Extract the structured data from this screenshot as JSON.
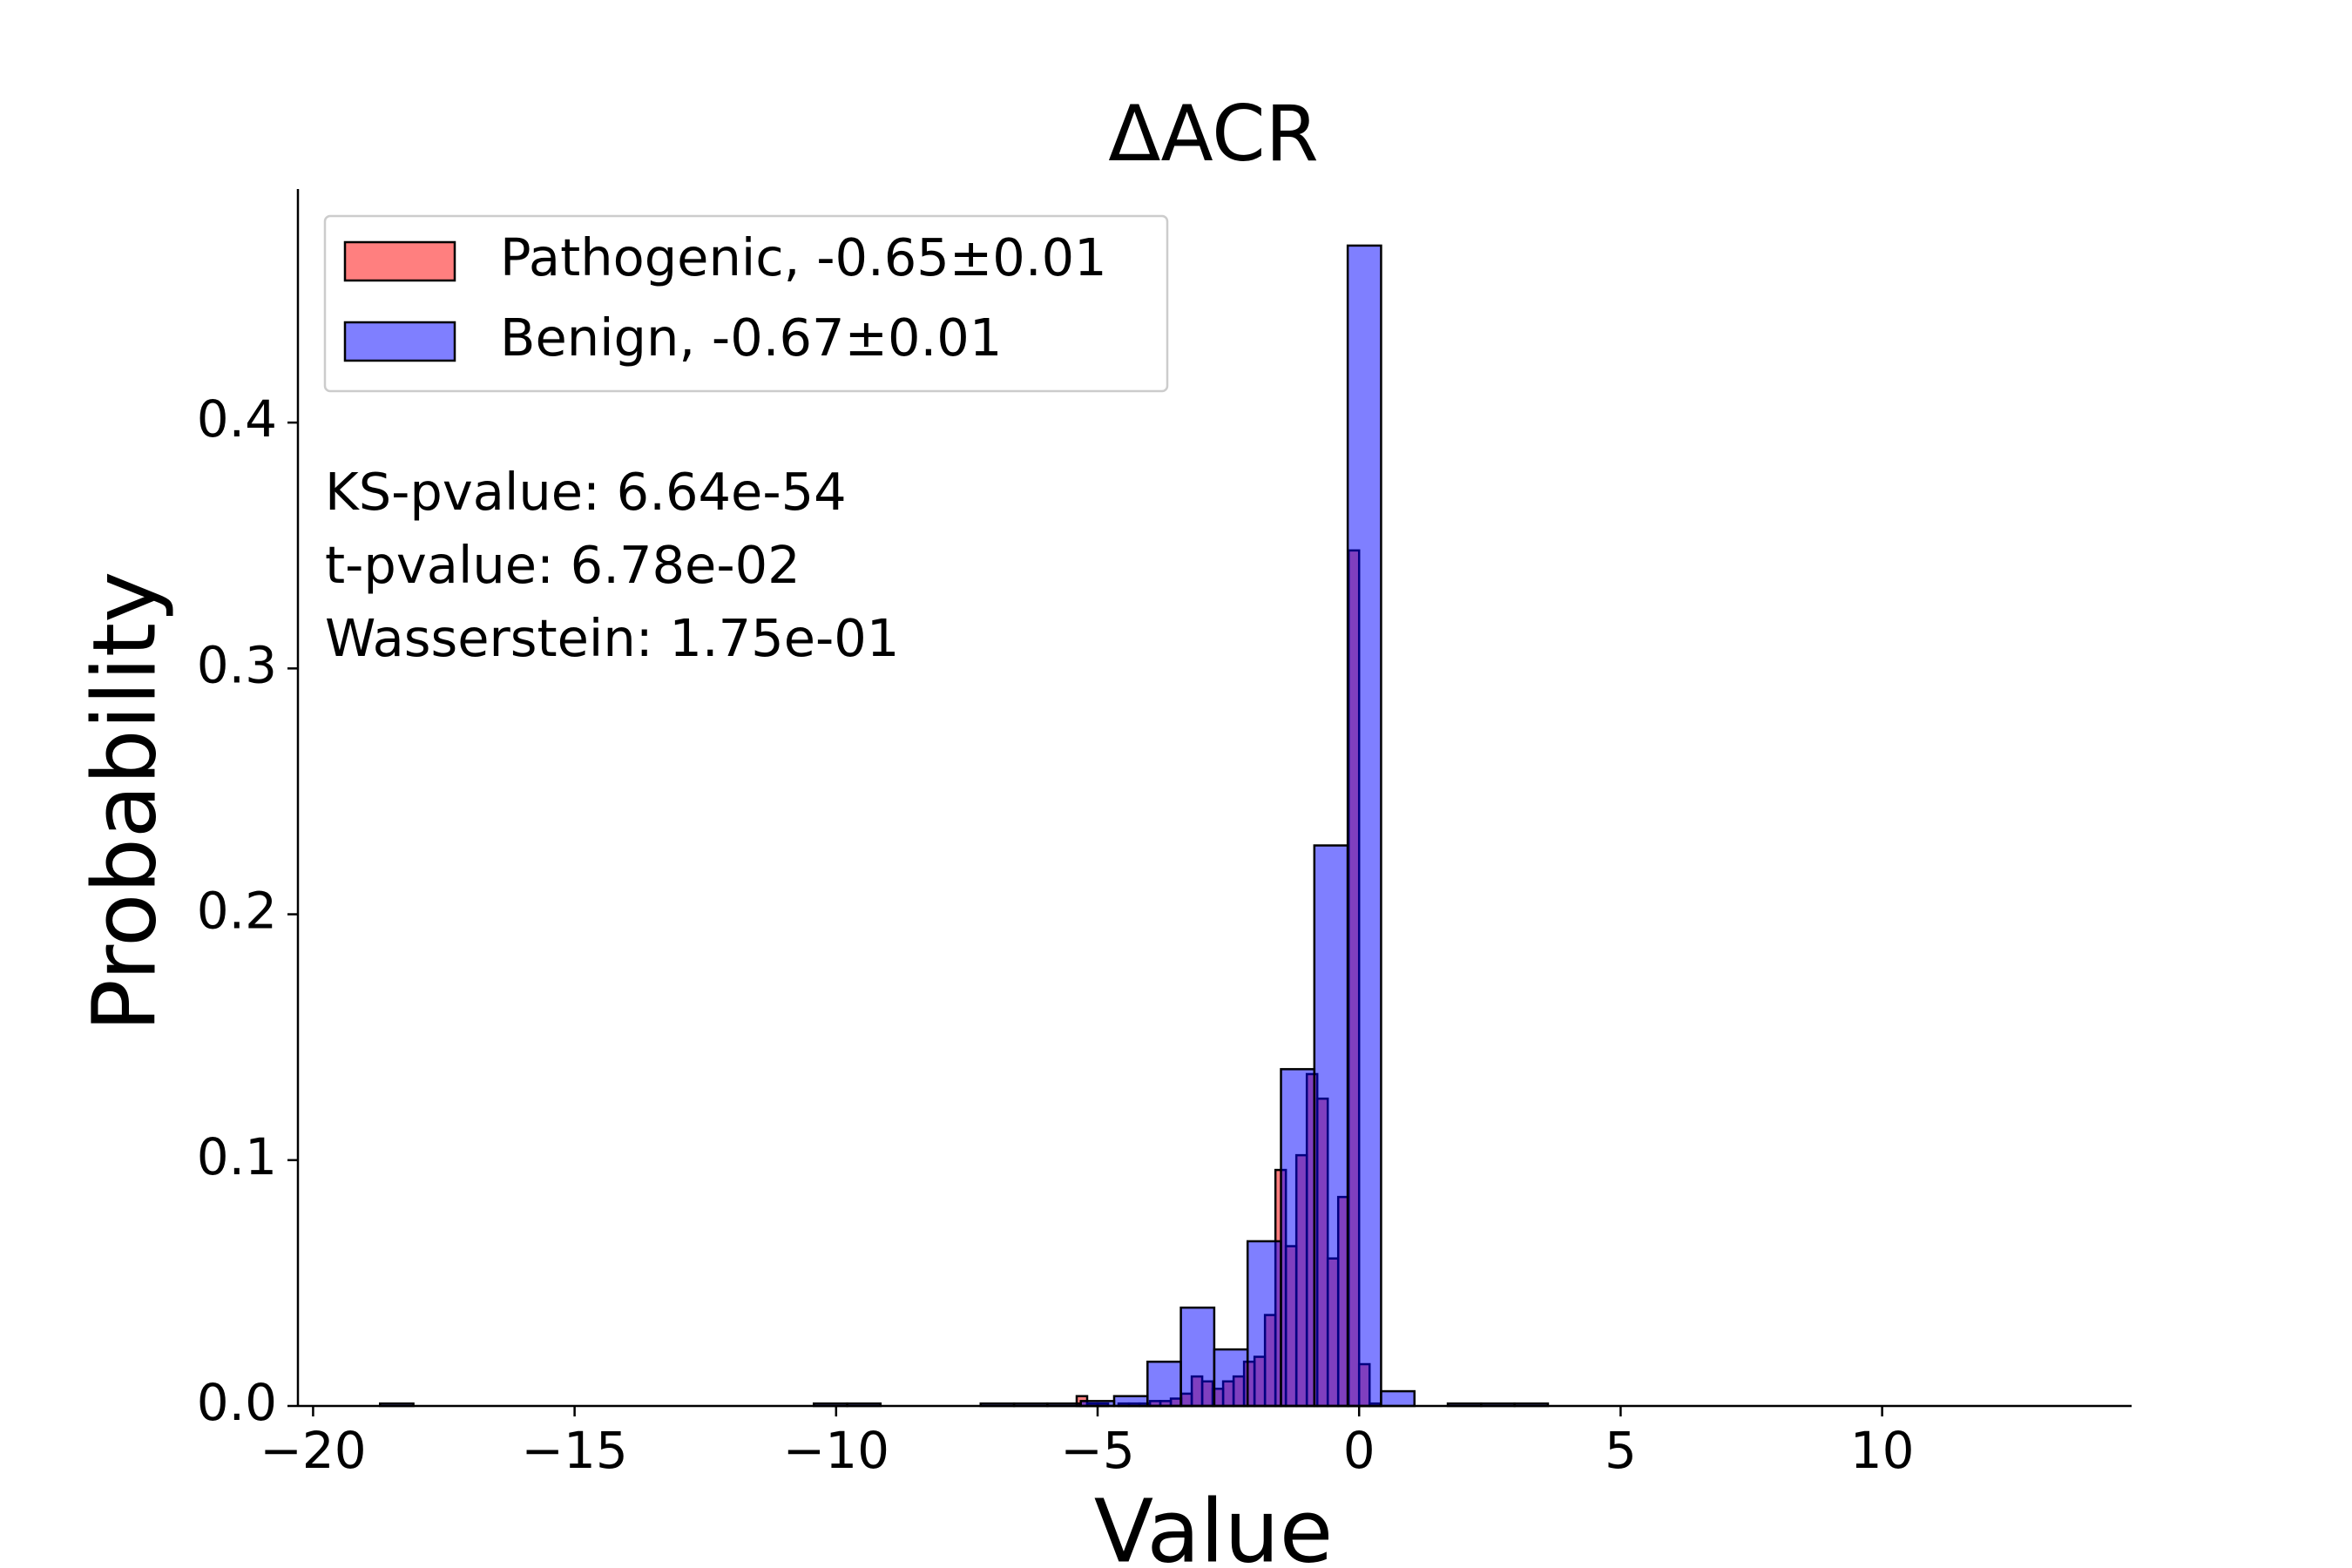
{
  "chart_data": {
    "type": "histogram",
    "title": "ΔACR",
    "x_label": "Value",
    "y_label": "Probability",
    "series": [
      {
        "name": "Pathogenic, -0.65±0.01",
        "color": "#ff0000",
        "bins": [
          -5.4,
          -5.2,
          -5.0,
          -4.8,
          -4.6,
          -4.4,
          -4.2,
          -4.0,
          -3.8,
          -3.6,
          -3.4,
          -3.2,
          -3.0,
          -2.8,
          -2.6,
          -2.4,
          -2.2,
          -2.0,
          -1.8,
          -1.6,
          -1.4,
          -1.2,
          -1.0,
          -0.8,
          -0.6,
          -0.4,
          -0.2,
          0.0,
          0.2,
          0.4
        ],
        "values": [
          0.004,
          0.001,
          0.001,
          0,
          0.001,
          0.001,
          0.001,
          0.002,
          0.002,
          0.003,
          0.005,
          0.012,
          0.01,
          0.007,
          0.01,
          0.012,
          0.018,
          0.02,
          0.037,
          0.096,
          0.065,
          0.102,
          0.135,
          0.125,
          0.06,
          0.085,
          0.348,
          0.017,
          0.001
        ]
      },
      {
        "name": "Benign, -0.67±0.01",
        "color": "#0000ff",
        "bins": [
          -18.72,
          -18.082,
          -17.444,
          -16.806,
          -16.168,
          -15.53,
          -14.892,
          -14.254,
          -13.616,
          -12.978,
          -12.34,
          -11.702,
          -11.064,
          -10.426,
          -9.788,
          -9.15,
          -8.512,
          -7.874,
          -7.236,
          -6.598,
          -5.96,
          -5.322,
          -4.684,
          -4.046,
          -3.408,
          -2.77,
          -2.132,
          -1.494,
          -0.856,
          -0.218,
          0.42,
          1.058,
          1.696,
          2.334,
          2.972,
          3.61,
          4.248,
          4.886,
          5.524,
          6.162,
          6.8,
          7.438,
          8.076,
          8.714,
          9.352,
          9.99,
          10.628,
          11.266,
          11.904,
          12.542,
          13.18
        ],
        "values": [
          0.001,
          0,
          0,
          0,
          0,
          0,
          0,
          0,
          0,
          0,
          0,
          0,
          0,
          0.001,
          0.001,
          0,
          0,
          0,
          0.001,
          0.001,
          0.001,
          0.002,
          0.004,
          0.018,
          0.04,
          0.023,
          0.067,
          0.137,
          0.228,
          0.472,
          0.006,
          0,
          0.001,
          0.001,
          0.001,
          0,
          0,
          0,
          0,
          0,
          0,
          0,
          0,
          0,
          0,
          0,
          0,
          0,
          0,
          0
        ]
      }
    ],
    "alpha": 0.5,
    "annotations": [
      "KS-pvalue: 6.64e-54",
      "t-pvalue: 6.78e-02",
      "Wasserstein: 1.75e-01"
    ],
    "xlim": [
      -20.29,
      14.77
    ],
    "ylim": [
      0,
      0.495
    ],
    "xticks": [
      {
        "value": -20,
        "label": "−20"
      },
      {
        "value": -15,
        "label": "−15"
      },
      {
        "value": -10,
        "label": "−10"
      },
      {
        "value": -5,
        "label": "−5"
      },
      0,
      5,
      10
    ],
    "yticks": [
      {
        "value": 0,
        "label": "0.0"
      },
      0.1,
      0.2,
      0.3,
      0.4
    ],
    "legend": "upper left",
    "grid": false
  }
}
